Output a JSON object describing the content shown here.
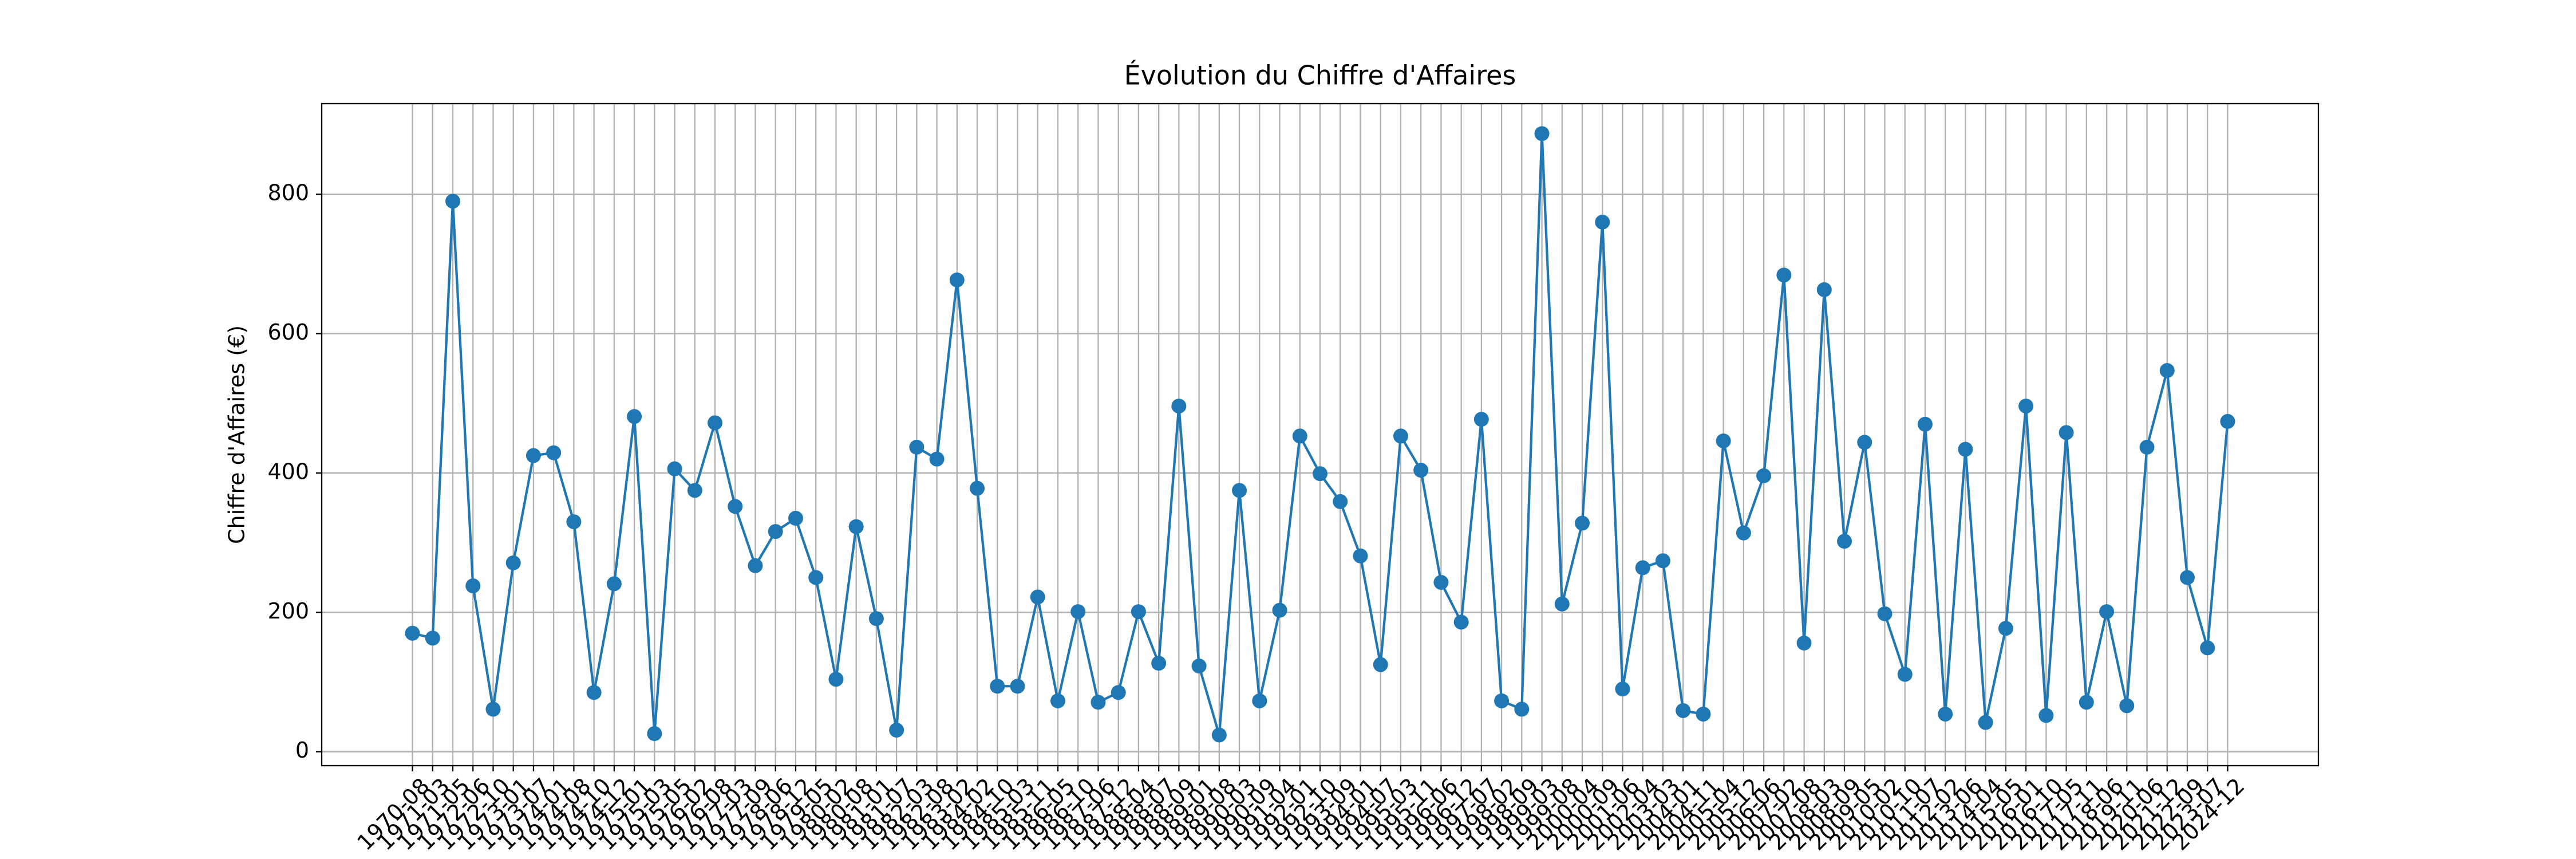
{
  "chart_data": {
    "type": "line",
    "title": "Évolution du Chiffre d'Affaires",
    "ylabel": "Chiffre d'Affaires (€)",
    "categories": [
      "1970-08",
      "1971-03",
      "1971-05",
      "1972-06",
      "1972-10",
      "1973-01",
      "1973-07",
      "1974-01",
      "1974-08",
      "1974-10",
      "1974-12",
      "1975-01",
      "1975-03",
      "1975-05",
      "1976-02",
      "1976-08",
      "1977-03",
      "1977-09",
      "1978-06",
      "1978-12",
      "1979-05",
      "1980-02",
      "1980-08",
      "1981-01",
      "1981-07",
      "1982-03",
      "1982-08",
      "1983-02",
      "1984-02",
      "1984-10",
      "1985-03",
      "1985-11",
      "1986-05",
      "1986-10",
      "1987-06",
      "1987-12",
      "1988-04",
      "1988-07",
      "1988-09",
      "1989-01",
      "1989-08",
      "1990-03",
      "1990-09",
      "1991-04",
      "1992-01",
      "1992-10",
      "1993-09",
      "1994-01",
      "1994-07",
      "1995-03",
      "1995-11",
      "1996-06",
      "1996-12",
      "1997-07",
      "1998-02",
      "1998-09",
      "1999-03",
      "1999-08",
      "2000-04",
      "2000-09",
      "2001-06",
      "2002-04",
      "2003-03",
      "2004-01",
      "2004-11",
      "2005-04",
      "2005-12",
      "2006-06",
      "2007-02",
      "2007-08",
      "2008-03",
      "2008-09",
      "2009-05",
      "2010-02",
      "2010-10",
      "2011-07",
      "2012-02",
      "2013-06",
      "2014-04",
      "2015-05",
      "2016-01",
      "2016-10",
      "2017-05",
      "2017-11",
      "2018-06",
      "2019-11",
      "2020-06",
      "2021-12",
      "2022-09",
      "2023-07",
      "2024-12"
    ],
    "series": [
      {
        "name": "Chiffre d'Affaires",
        "color": "#1f77b4",
        "values": [
          170,
          163,
          790,
          238,
          61,
          271,
          425,
          429,
          330,
          85,
          241,
          481,
          26,
          406,
          375,
          472,
          352,
          267,
          316,
          335,
          250,
          104,
          323,
          191,
          31,
          437,
          420,
          677,
          378,
          94,
          94,
          222,
          73,
          201,
          71,
          85,
          201,
          127,
          496,
          123,
          24,
          375,
          73,
          203,
          453,
          399,
          359,
          281,
          125,
          453,
          404,
          243,
          186,
          477,
          73,
          61,
          887,
          212,
          328,
          760,
          90,
          264,
          274,
          59,
          54,
          446,
          314,
          396,
          684,
          156,
          663,
          302,
          444,
          198,
          111,
          470,
          54,
          434,
          42,
          177,
          496,
          52,
          458,
          71,
          201,
          66,
          437,
          547,
          250,
          149,
          474
        ]
      }
    ],
    "ylim": [
      -20,
      930
    ],
    "yticks": [
      0,
      200,
      400,
      600,
      800
    ],
    "grid": true
  }
}
